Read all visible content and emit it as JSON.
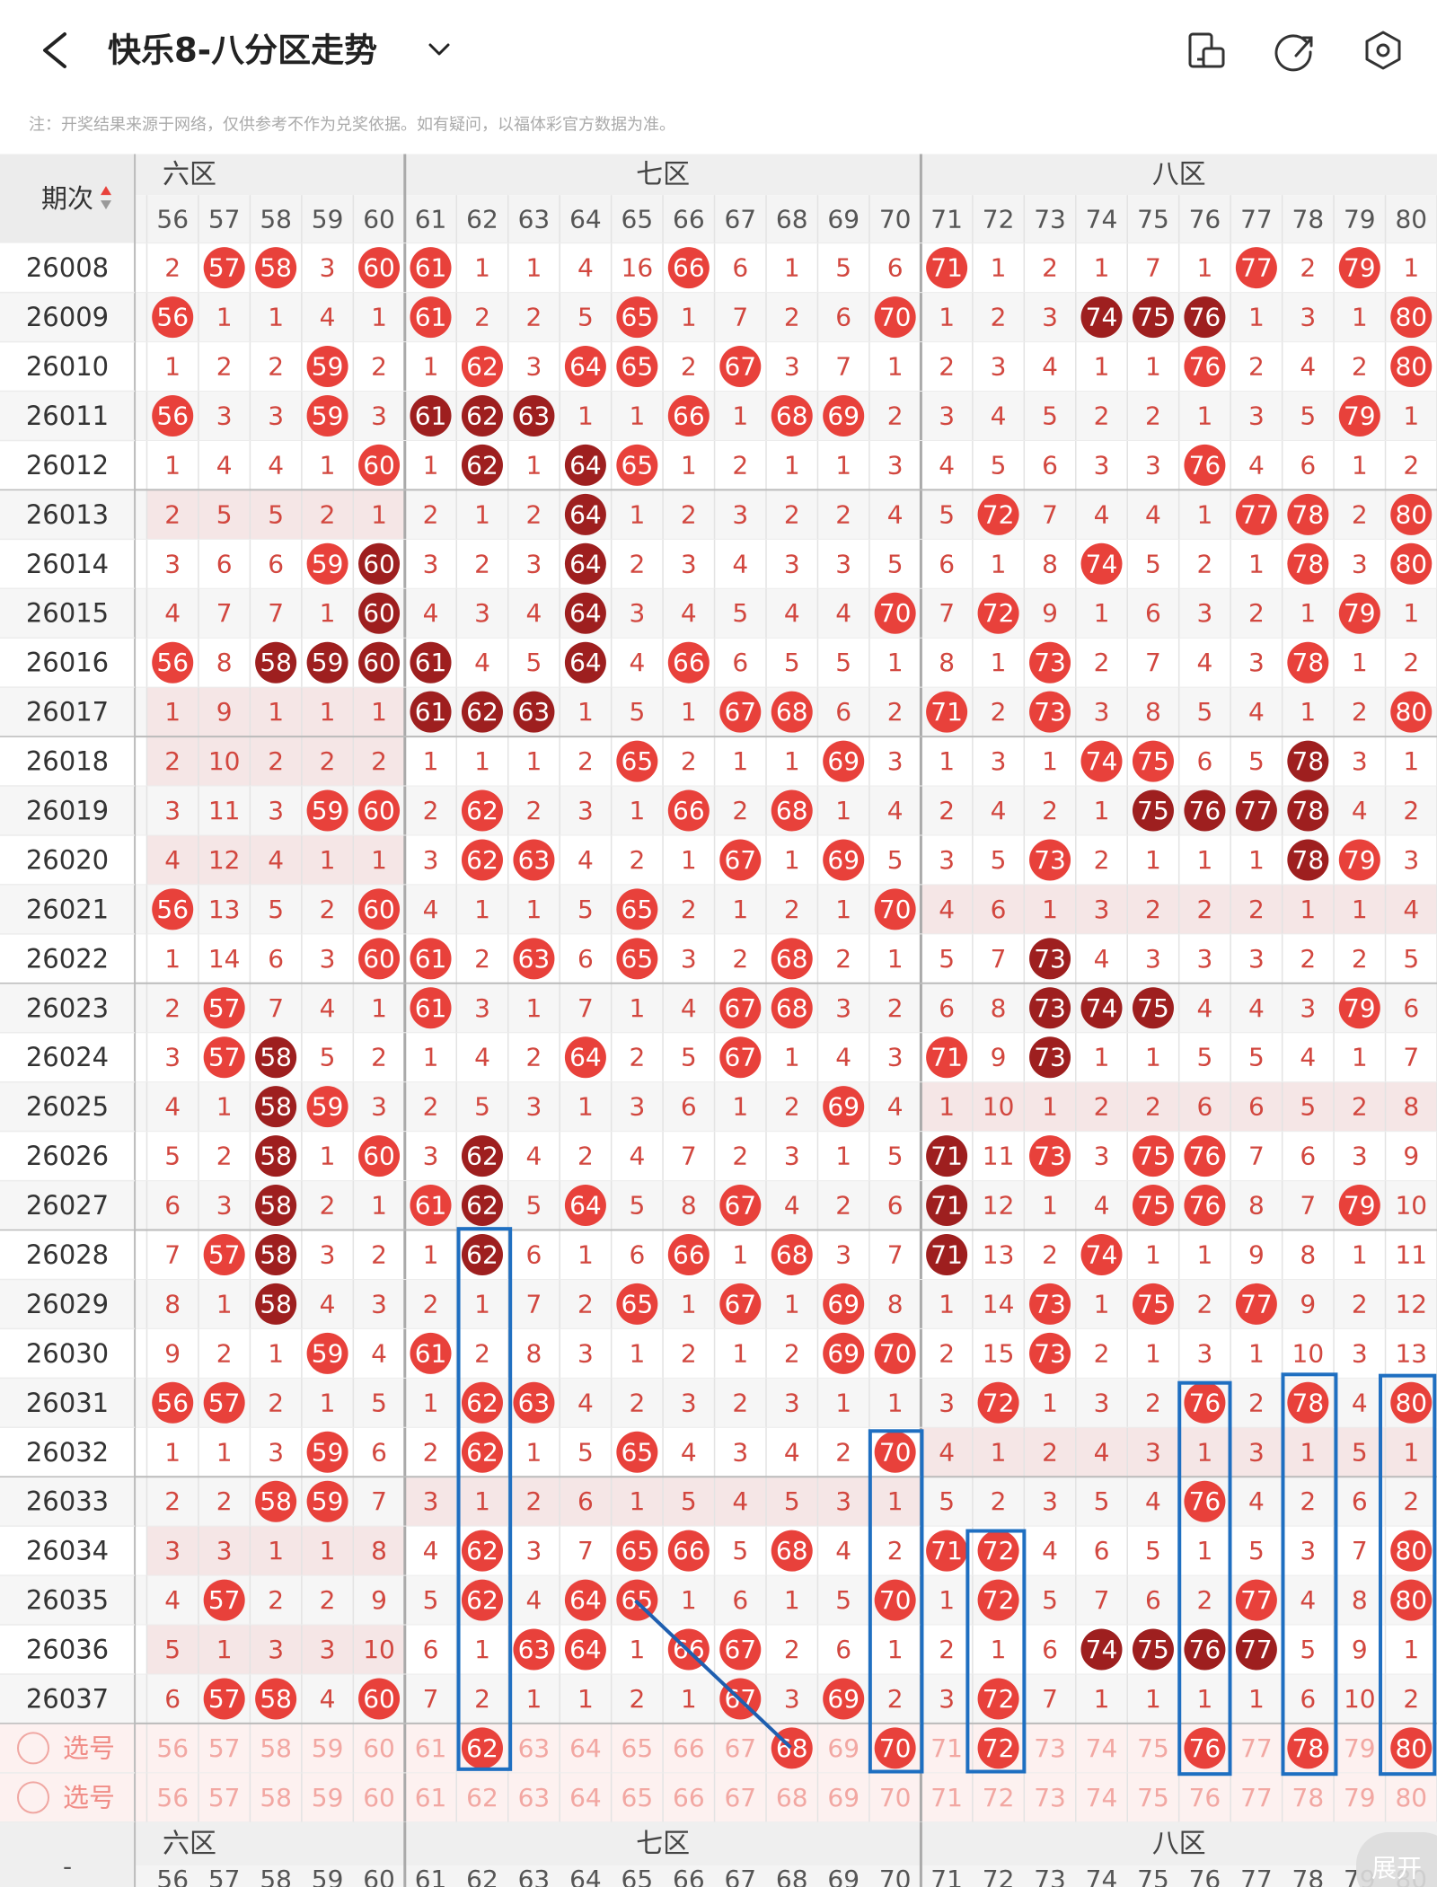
{
  "header": {
    "title": "快乐8-八分区走势",
    "note": "注：开奖结果来源于网络，仅供参考不作为兑奖依据。如有疑问，以福体彩官方数据为准。"
  },
  "table": {
    "period_header": "期次",
    "zones": [
      "六区",
      "七区",
      "八区"
    ],
    "columns": [
      56,
      57,
      58,
      59,
      60,
      61,
      62,
      63,
      64,
      65,
      66,
      67,
      68,
      69,
      70,
      71,
      72,
      73,
      74,
      75,
      76,
      77,
      78,
      79,
      80
    ],
    "rows": [
      {
        "period": "26008",
        "values": [
          2,
          57,
          58,
          3,
          60,
          61,
          1,
          1,
          4,
          16,
          66,
          6,
          1,
          5,
          6,
          71,
          1,
          2,
          1,
          7,
          1,
          77,
          2,
          79,
          1
        ],
        "marks": ".rr.r r.... r.... r.... .r.r."
      },
      {
        "period": "26009",
        "values": [
          56,
          1,
          1,
          4,
          1,
          61,
          2,
          2,
          5,
          65,
          1,
          7,
          2,
          6,
          70,
          1,
          2,
          3,
          74,
          75,
          76,
          1,
          3,
          1,
          80
        ],
        "marks": "r.... r...r ....r ...dd d...r"
      },
      {
        "period": "26010",
        "values": [
          1,
          2,
          2,
          59,
          2,
          1,
          62,
          3,
          64,
          65,
          2,
          67,
          3,
          7,
          1,
          2,
          3,
          4,
          1,
          1,
          76,
          2,
          4,
          2,
          80
        ],
        "marks": "...r. .r.rr .r... ..... r...r"
      },
      {
        "period": "26011",
        "values": [
          56,
          3,
          3,
          59,
          3,
          61,
          62,
          63,
          1,
          1,
          66,
          1,
          68,
          69,
          2,
          3,
          4,
          5,
          2,
          2,
          1,
          3,
          5,
          79,
          1
        ],
        "marks": "r..r. ddd.. r.rr. ..... ...r."
      },
      {
        "period": "26012",
        "values": [
          1,
          4,
          4,
          1,
          60,
          1,
          62,
          1,
          64,
          65,
          1,
          2,
          1,
          1,
          3,
          4,
          5,
          6,
          3,
          3,
          76,
          4,
          6,
          1,
          2
        ],
        "marks": "....r .d.dr ..... ..... r...."
      },
      {
        "period": "26013",
        "values": [
          2,
          5,
          5,
          2,
          1,
          2,
          1,
          2,
          64,
          1,
          2,
          3,
          2,
          2,
          4,
          5,
          72,
          7,
          4,
          4,
          1,
          77,
          78,
          2,
          80
        ],
        "marks": "..... ...d. ..... .r... .rr.r"
      },
      {
        "period": "26014",
        "values": [
          3,
          6,
          6,
          59,
          60,
          3,
          2,
          3,
          64,
          2,
          3,
          4,
          3,
          3,
          5,
          6,
          1,
          8,
          74,
          5,
          2,
          1,
          78,
          3,
          80
        ],
        "marks": "...rd ...d. ..... ...r. ..r.r"
      },
      {
        "period": "26015",
        "values": [
          4,
          7,
          7,
          1,
          60,
          4,
          3,
          4,
          64,
          3,
          4,
          5,
          4,
          4,
          70,
          7,
          72,
          9,
          1,
          6,
          3,
          2,
          1,
          79,
          1
        ],
        "marks": "....d ...d. ....r .r... ...r."
      },
      {
        "period": "26016",
        "values": [
          56,
          8,
          58,
          59,
          60,
          61,
          4,
          5,
          64,
          4,
          66,
          6,
          5,
          5,
          1,
          8,
          1,
          73,
          2,
          7,
          4,
          3,
          78,
          1,
          2
        ],
        "marks": "r.ddd d..d. r.... ..r.. ..r.."
      },
      {
        "period": "26017",
        "values": [
          1,
          9,
          1,
          1,
          1,
          61,
          62,
          63,
          1,
          5,
          1,
          67,
          68,
          6,
          2,
          71,
          2,
          73,
          3,
          8,
          5,
          4,
          1,
          2,
          80
        ],
        "marks": "..... ddd.. .rr.. r.r.. ....r"
      },
      {
        "period": "26018",
        "values": [
          2,
          10,
          2,
          2,
          2,
          1,
          1,
          1,
          2,
          65,
          2,
          1,
          1,
          69,
          3,
          1,
          3,
          1,
          74,
          75,
          6,
          5,
          78,
          3,
          1
        ],
        "marks": "..... ....r ...r. ...rr ..d.."
      },
      {
        "period": "26019",
        "values": [
          3,
          11,
          3,
          59,
          60,
          2,
          62,
          2,
          3,
          1,
          66,
          2,
          68,
          1,
          4,
          2,
          4,
          2,
          1,
          75,
          76,
          77,
          78,
          4,
          2
        ],
        "marks": "...rr .r... r.r.. ....d ddd.."
      },
      {
        "period": "26020",
        "values": [
          4,
          12,
          4,
          1,
          1,
          3,
          62,
          63,
          4,
          2,
          1,
          67,
          1,
          69,
          5,
          3,
          5,
          73,
          2,
          1,
          1,
          1,
          78,
          79,
          3
        ],
        "marks": "..... .rr.. .r.r. ..r.. ..dr."
      },
      {
        "period": "26021",
        "values": [
          56,
          13,
          5,
          2,
          60,
          4,
          1,
          1,
          5,
          65,
          2,
          1,
          2,
          1,
          70,
          4,
          6,
          1,
          3,
          2,
          2,
          2,
          1,
          1,
          4
        ],
        "marks": "r...r ....r ....r ..... ....."
      },
      {
        "period": "26022",
        "values": [
          1,
          14,
          6,
          3,
          60,
          61,
          2,
          63,
          6,
          65,
          3,
          2,
          68,
          2,
          1,
          5,
          7,
          73,
          4,
          3,
          3,
          3,
          2,
          2,
          5
        ],
        "marks": "....r r.r.r ..r.. ..d.. ....."
      },
      {
        "period": "26023",
        "values": [
          2,
          57,
          7,
          4,
          1,
          61,
          3,
          1,
          7,
          1,
          4,
          67,
          68,
          3,
          2,
          6,
          8,
          73,
          74,
          75,
          4,
          4,
          3,
          79,
          6
        ],
        "marks": ".r... r.... .rr.. ..ddd ...r."
      },
      {
        "period": "26024",
        "values": [
          3,
          57,
          58,
          5,
          2,
          1,
          4,
          2,
          64,
          2,
          5,
          67,
          1,
          4,
          3,
          71,
          9,
          73,
          1,
          1,
          5,
          5,
          4,
          1,
          7
        ],
        "marks": ".rd.. ...r. .r... r.d.. ....."
      },
      {
        "period": "26025",
        "values": [
          4,
          1,
          58,
          59,
          3,
          2,
          5,
          3,
          1,
          3,
          6,
          1,
          2,
          69,
          4,
          1,
          10,
          1,
          2,
          2,
          6,
          6,
          5,
          2,
          8
        ],
        "marks": "..dr. ..... ...r. ..... ....."
      },
      {
        "period": "26026",
        "values": [
          5,
          2,
          58,
          1,
          60,
          3,
          62,
          4,
          2,
          4,
          7,
          2,
          3,
          1,
          5,
          71,
          11,
          73,
          3,
          75,
          76,
          7,
          6,
          3,
          9
        ],
        "marks": "..d.r .d... ..... d.r.r r...."
      },
      {
        "period": "26027",
        "values": [
          6,
          3,
          58,
          2,
          1,
          61,
          62,
          5,
          64,
          5,
          8,
          67,
          4,
          2,
          6,
          71,
          12,
          1,
          4,
          75,
          76,
          8,
          7,
          79,
          10
        ],
        "marks": "..d.. rd.r. .r... d...r r..r."
      },
      {
        "period": "26028",
        "values": [
          7,
          57,
          58,
          3,
          2,
          1,
          62,
          6,
          1,
          6,
          66,
          1,
          68,
          3,
          7,
          71,
          13,
          2,
          74,
          1,
          1,
          9,
          8,
          1,
          11
        ],
        "marks": ".rd.. .d... r.r.. d..r. ....."
      },
      {
        "period": "26029",
        "values": [
          8,
          1,
          58,
          4,
          3,
          2,
          1,
          7,
          2,
          65,
          1,
          67,
          1,
          69,
          8,
          1,
          14,
          73,
          1,
          75,
          2,
          77,
          9,
          2,
          12
        ],
        "marks": "..d.. ....r .r.r. ..r.r .r..."
      },
      {
        "period": "26030",
        "values": [
          9,
          2,
          1,
          59,
          4,
          61,
          2,
          8,
          3,
          1,
          2,
          1,
          2,
          69,
          70,
          2,
          15,
          73,
          2,
          1,
          3,
          1,
          10,
          3,
          13
        ],
        "marks": "...r. r.... ...rr ..r.. ....."
      },
      {
        "period": "26031",
        "values": [
          56,
          57,
          2,
          1,
          5,
          1,
          62,
          63,
          4,
          2,
          3,
          2,
          3,
          1,
          1,
          3,
          72,
          1,
          3,
          2,
          76,
          2,
          78,
          4,
          80
        ],
        "marks": "rr... .rr.. ..... .r... r.r.r"
      },
      {
        "period": "26032",
        "values": [
          1,
          1,
          3,
          59,
          6,
          2,
          62,
          1,
          5,
          65,
          4,
          3,
          4,
          2,
          70,
          4,
          1,
          2,
          4,
          3,
          1,
          3,
          1,
          5,
          1
        ],
        "marks": "...r. .r..r ....r ..... ....."
      },
      {
        "period": "26033",
        "values": [
          2,
          2,
          58,
          59,
          7,
          3,
          1,
          2,
          6,
          1,
          5,
          4,
          5,
          3,
          1,
          5,
          2,
          3,
          5,
          4,
          76,
          4,
          2,
          6,
          2
        ],
        "marks": "..rr. ..... ..... ..... r...."
      },
      {
        "period": "26034",
        "values": [
          3,
          3,
          1,
          1,
          8,
          4,
          62,
          3,
          7,
          65,
          66,
          5,
          68,
          4,
          2,
          71,
          72,
          4,
          6,
          5,
          1,
          5,
          3,
          7,
          80
        ],
        "marks": "..... .r..r r.r.. rr... ....r"
      },
      {
        "period": "26035",
        "values": [
          4,
          57,
          2,
          2,
          9,
          5,
          62,
          4,
          64,
          65,
          1,
          6,
          1,
          5,
          70,
          1,
          72,
          5,
          7,
          6,
          2,
          77,
          4,
          8,
          80
        ],
        "marks": ".r... .r.rr ....r .r... .r..r"
      },
      {
        "period": "26036",
        "values": [
          5,
          1,
          3,
          3,
          10,
          6,
          1,
          63,
          64,
          1,
          66,
          67,
          2,
          6,
          1,
          2,
          1,
          6,
          74,
          75,
          76,
          77,
          5,
          9,
          1
        ],
        "marks": "..... ..rr. rr... ...dd dd..."
      },
      {
        "period": "26037",
        "values": [
          6,
          57,
          58,
          4,
          60,
          7,
          2,
          1,
          1,
          2,
          1,
          67,
          3,
          69,
          2,
          3,
          72,
          7,
          1,
          1,
          1,
          1,
          6,
          10,
          2
        ],
        "marks": ".rr.r ..... .r.r. .r... ....."
      }
    ],
    "pick_rows": [
      {
        "label": "选号",
        "selected": [
          62,
          68,
          70,
          72,
          76,
          78,
          80
        ]
      },
      {
        "label": "选号"
      }
    ]
  },
  "footer": {
    "dash": "-",
    "expand": "展开"
  }
}
